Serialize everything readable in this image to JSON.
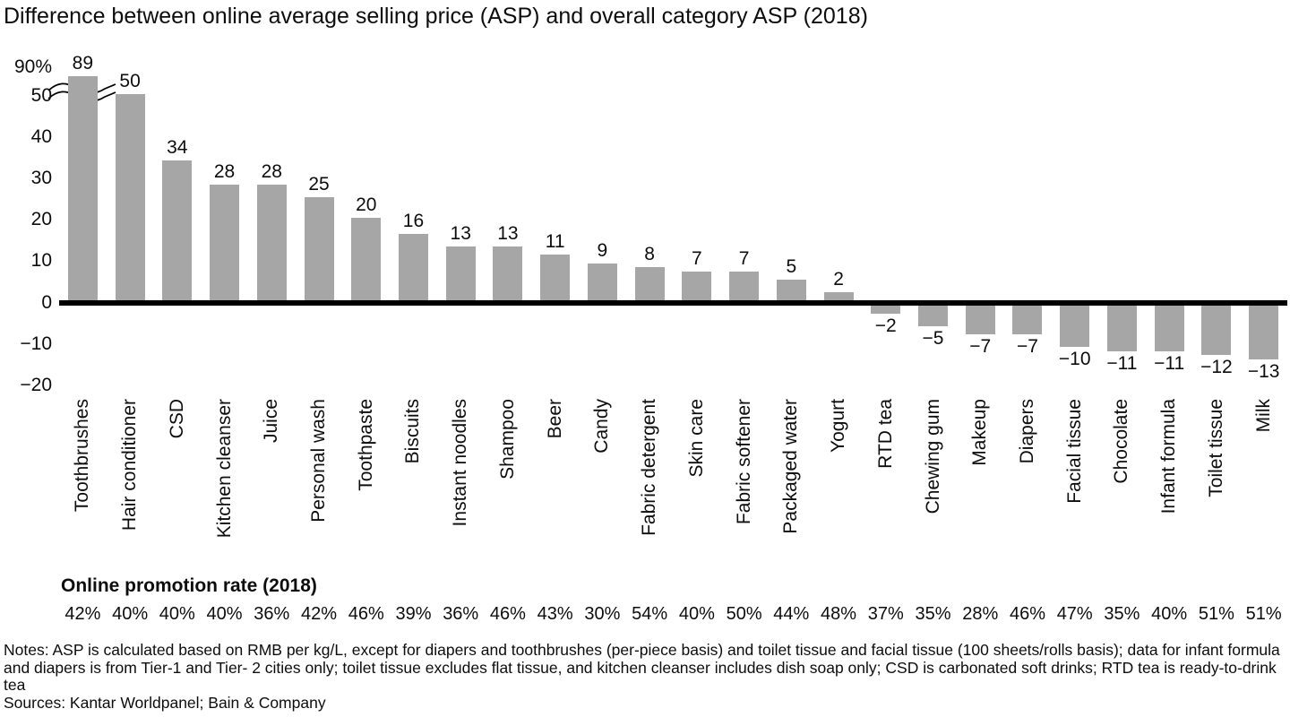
{
  "title": "Difference between online average selling price (ASP) and overall category ASP (2018)",
  "chart_data": {
    "type": "bar",
    "title": "Difference between online average selling price (ASP) and overall category ASP (2018)",
    "xlabel": "",
    "ylabel": "",
    "ylim": [
      -20,
      90
    ],
    "grid": false,
    "legend": "none",
    "bar_color": "#a6a6a6",
    "axis_color": "#000000",
    "axis_break": {
      "between": [
        50,
        90
      ],
      "on_category": "Toothbrushes"
    },
    "y_axis": {
      "ticks": [
        {
          "label": "90%",
          "value": 90
        },
        {
          "label": "50",
          "value": 50
        },
        {
          "label": "40",
          "value": 40
        },
        {
          "label": "30",
          "value": 30
        },
        {
          "label": "20",
          "value": 20
        },
        {
          "label": "10",
          "value": 10
        },
        {
          "label": "0",
          "value": 0
        },
        {
          "label": "−10",
          "value": -10
        },
        {
          "label": "−20",
          "value": -20
        }
      ]
    },
    "categories": [
      "Toothbrushes",
      "Hair conditioner",
      "CSD",
      "Kitchen cleanser",
      "Juice",
      "Personal wash",
      "Toothpaste",
      "Biscuits",
      "Instant noodles",
      "Shampoo",
      "Beer",
      "Candy",
      "Fabric detergent",
      "Skin care",
      "Fabric softener",
      "Packaged water",
      "Yogurt",
      "RTD tea",
      "Chewing gum",
      "Makeup",
      "Diapers",
      "Facial tissue",
      "Chocolate",
      "Infant formula",
      "Toilet tissue",
      "Milk"
    ],
    "values": [
      89,
      50,
      34,
      28,
      28,
      25,
      20,
      16,
      13,
      13,
      11,
      9,
      8,
      7,
      7,
      5,
      2,
      -2,
      -5,
      -7,
      -7,
      -10,
      -11,
      -11,
      -12,
      -13
    ],
    "secondary_row": {
      "label": "Online promotion rate (2018)",
      "values": [
        "42%",
        "40%",
        "40%",
        "40%",
        "36%",
        "42%",
        "46%",
        "39%",
        "36%",
        "46%",
        "43%",
        "30%",
        "54%",
        "40%",
        "50%",
        "44%",
        "48%",
        "37%",
        "35%",
        "28%",
        "46%",
        "47%",
        "35%",
        "40%",
        "51%",
        "51%"
      ]
    }
  },
  "notes": "Notes: ASP is calculated based on RMB per kg/L, except for diapers and toothbrushes (per-piece basis) and toilet tissue and facial tissue (100 sheets/rolls basis); data for infant formula and diapers is from Tier-1 and Tier- 2 cities only; toilet tissue excludes flat tissue, and kitchen cleanser includes dish soap only; CSD is carbonated soft drinks; RTD tea is ready-to-drink tea",
  "sources": "Sources: Kantar Worldpanel; Bain & Company"
}
